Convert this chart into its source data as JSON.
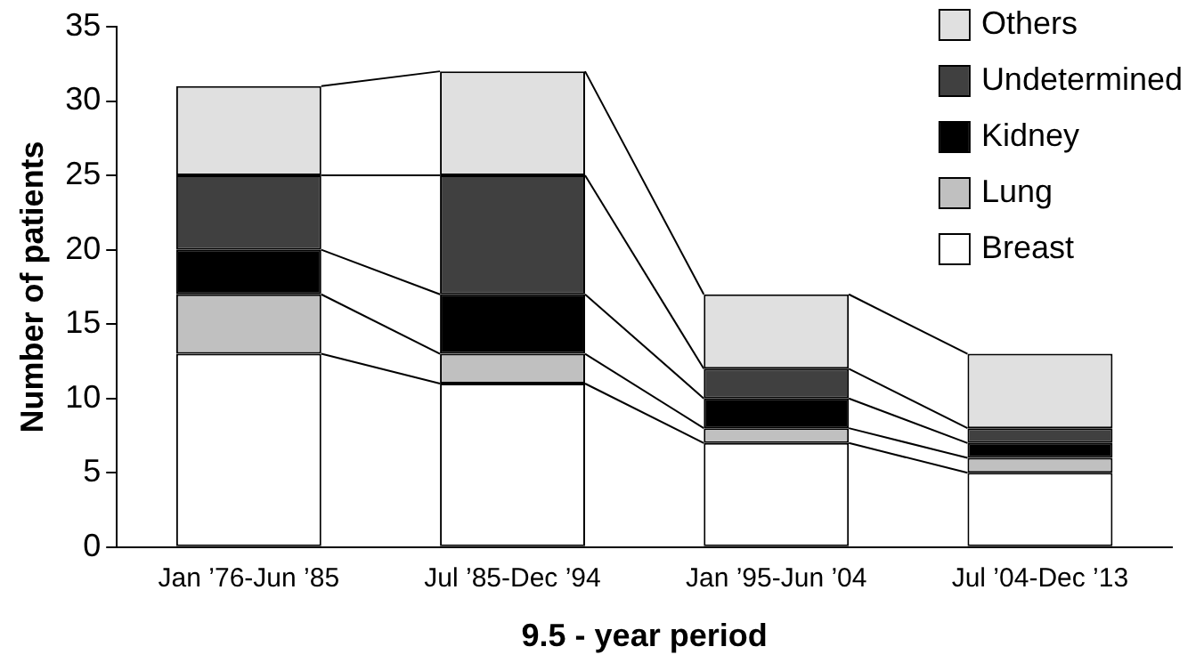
{
  "chart_data": {
    "type": "bar",
    "stacked": true,
    "xlabel": "9.5 - year period",
    "ylabel": "Number of patients",
    "categories": [
      "Jan ’76-Jun ’85",
      "Jul ’85-Dec ’94",
      "Jan ’95-Jun ’04",
      "Jul ’04-Dec ’13"
    ],
    "series": [
      {
        "name": "Breast",
        "color": "#ffffff",
        "values": [
          13,
          11,
          7,
          5
        ]
      },
      {
        "name": "Lung",
        "color": "#c0c0c0",
        "values": [
          4,
          2,
          1,
          1
        ]
      },
      {
        "name": "Kidney",
        "color": "#000000",
        "values": [
          3,
          4,
          2,
          1
        ]
      },
      {
        "name": "Undetermined",
        "color": "#404040",
        "values": [
          5,
          8,
          2,
          1
        ]
      },
      {
        "name": "Others",
        "color": "#e0e0e0",
        "values": [
          6,
          7,
          5,
          5
        ]
      }
    ],
    "ylim": [
      0,
      35
    ],
    "yticks": [
      0,
      5,
      10,
      15,
      20,
      25,
      30,
      35
    ],
    "grid": false,
    "legend": "top right"
  }
}
